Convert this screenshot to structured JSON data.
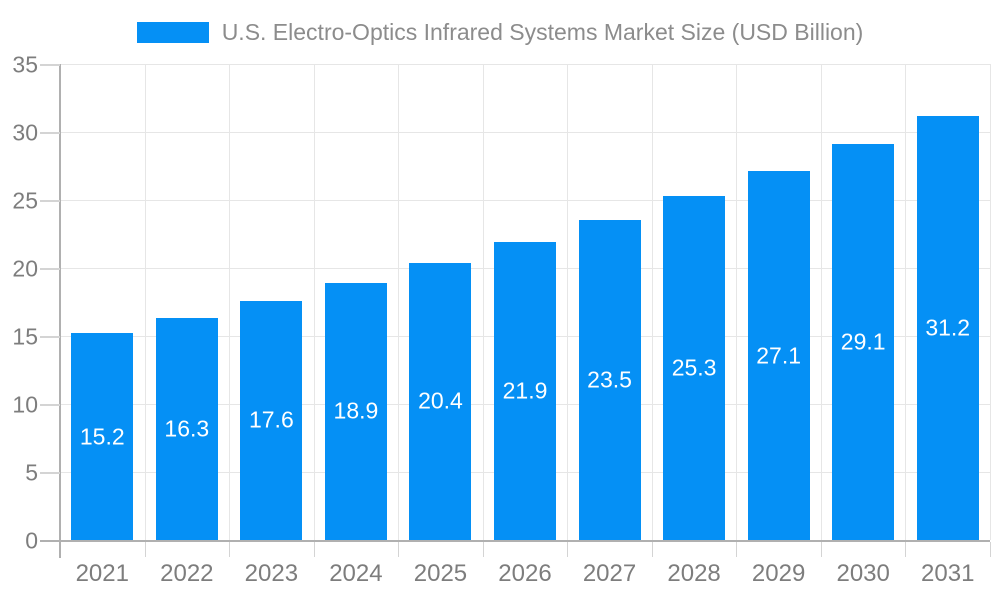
{
  "colors": {
    "bar": "#0590f5",
    "background": "#ffffff",
    "gridline": "#e6e6e6",
    "axis_line": "#b0b0b0",
    "tick_mark": "#d4d4d4",
    "axis_label": "#7d7d7d",
    "title_text": "#8c8c8c",
    "value_label": "#ffffff"
  },
  "chart_data": {
    "type": "bar",
    "title": "U.S. Electro-Optics Infrared Systems Market Size (USD Billion)",
    "xlabel": "",
    "ylabel": "",
    "categories": [
      "2021",
      "2022",
      "2023",
      "2024",
      "2025",
      "2026",
      "2027",
      "2028",
      "2029",
      "2030",
      "2031"
    ],
    "values": [
      15.2,
      16.3,
      17.6,
      18.9,
      20.4,
      21.9,
      23.5,
      25.3,
      27.1,
      29.1,
      31.2
    ],
    "ylim": [
      0,
      35
    ],
    "yticks": [
      0,
      5,
      10,
      15,
      20,
      25,
      30,
      35
    ],
    "grid": "both",
    "legend_position": "top-center",
    "value_label_position": "inside-center"
  }
}
